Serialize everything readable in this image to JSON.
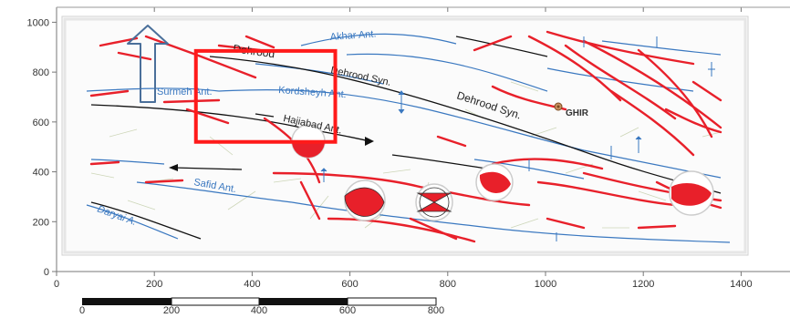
{
  "axes": {
    "x_ticks": [
      {
        "v": 0,
        "label": "0"
      },
      {
        "v": 200,
        "label": "200"
      },
      {
        "v": 400,
        "label": "400"
      },
      {
        "v": 600,
        "label": "600"
      },
      {
        "v": 800,
        "label": "800"
      },
      {
        "v": 1000,
        "label": "1000"
      },
      {
        "v": 1200,
        "label": "1200"
      },
      {
        "v": 1400,
        "label": "1400"
      }
    ],
    "y_ticks": [
      {
        "v": 0,
        "label": "0"
      },
      {
        "v": 200,
        "label": "200"
      },
      {
        "v": 400,
        "label": "400"
      },
      {
        "v": 600,
        "label": "600"
      },
      {
        "v": 800,
        "label": "800"
      },
      {
        "v": 1000,
        "label": "1000"
      }
    ],
    "xlim": [
      0,
      1500
    ],
    "ylim": [
      0,
      1060
    ]
  },
  "scale_bar": {
    "labels": [
      "0",
      "200",
      "400",
      "600",
      "800"
    ]
  },
  "map_labels": {
    "akhar": "Akhar Ant.",
    "dehrood_top": "Dehrood",
    "dehrood_syn1": "Dehrood Syn.",
    "dehrood_syn2": "Dehrood Syn.",
    "surmeh": "Surmeh Ant.",
    "kordsheyh": "Kordsheyh Ant.",
    "hajiabad": "Hajiabad Ant.",
    "safid": "Safid Ant.",
    "daryai": "Daryai A.",
    "ghir": "GHIR"
  },
  "colors": {
    "fault": "#e8202a",
    "anticline": "#3a78c0",
    "syncline": "#111111",
    "highlight": "#ff1a1a",
    "arrow": "#4a6f9a"
  },
  "highlight_box": {
    "x0": 285,
    "y0": 520,
    "x1": 570,
    "y1": 885
  }
}
